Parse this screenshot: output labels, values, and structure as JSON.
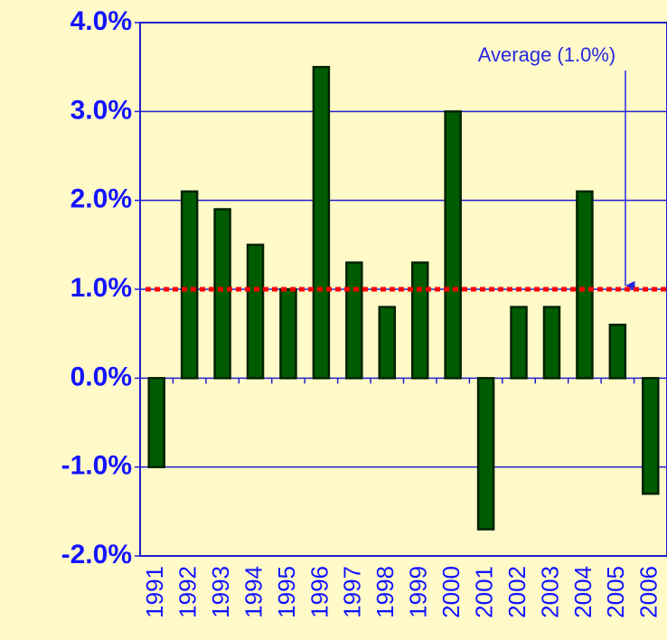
{
  "chart_data": {
    "type": "bar",
    "categories": [
      "1991",
      "1992",
      "1993",
      "1994",
      "1995",
      "1996",
      "1997",
      "1998",
      "1999",
      "2000",
      "2001",
      "2002",
      "2003",
      "2004",
      "2005",
      "2006"
    ],
    "values": [
      -1.0,
      2.1,
      1.9,
      1.5,
      1.0,
      3.5,
      1.3,
      0.8,
      1.3,
      3.0,
      -1.7,
      0.8,
      0.8,
      2.1,
      0.6,
      -1.3
    ],
    "color": "#005c00",
    "ylim": [
      -2,
      4
    ],
    "yticks": [
      {
        "value": -2,
        "label": "-2.0%"
      },
      {
        "value": -1,
        "label": "-1.0%"
      },
      {
        "value": 0,
        "label": "0.0%"
      },
      {
        "value": 1,
        "label": "1.0%"
      },
      {
        "value": 2,
        "label": "2.0%"
      },
      {
        "value": 3,
        "label": "3.0%"
      },
      {
        "value": 4,
        "label": "4.0%"
      }
    ],
    "grid": true,
    "average": 1.0,
    "average_color": "#ff0000",
    "annotation": "Average (1.0%)"
  }
}
